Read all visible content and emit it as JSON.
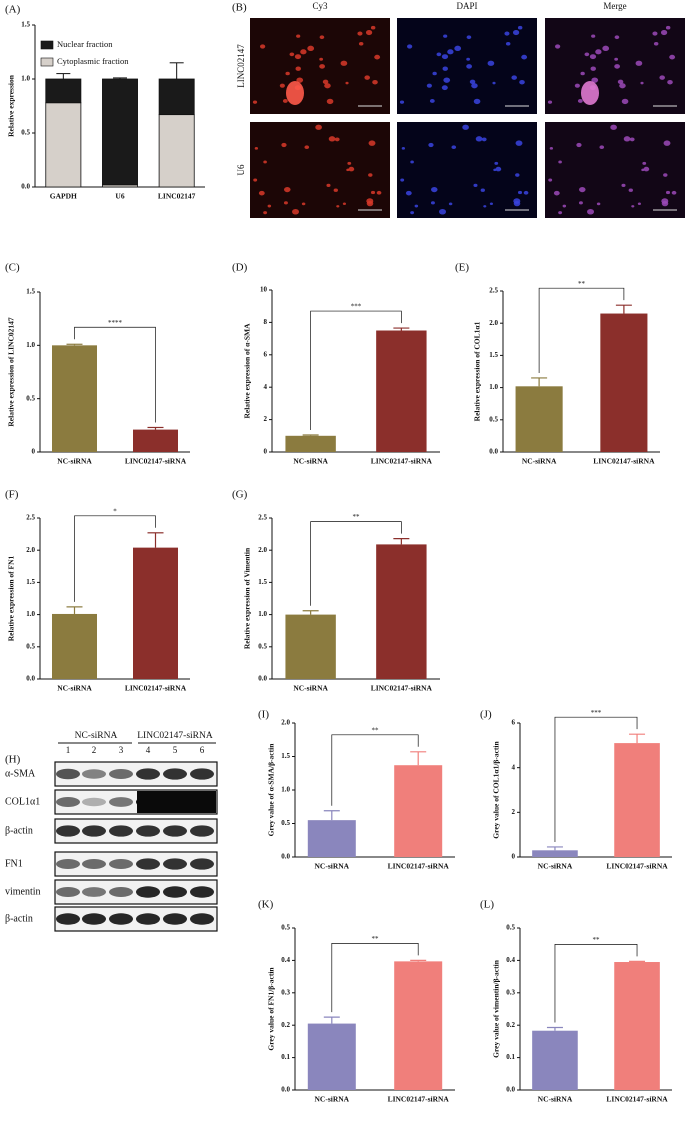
{
  "chart_data": [
    {
      "type": "stacked_bar",
      "panel": "(A)",
      "y_label": "Relative expression",
      "categories": [
        "GAPDH",
        "U6",
        "LINC02147"
      ],
      "series": [
        {
          "name": "Nuclear fraction",
          "color": "#1a1a1a",
          "values": [
            0.22,
            0.98,
            0.33
          ],
          "errors": [
            0.05,
            0.01,
            0.15
          ]
        },
        {
          "name": "Cytoplasmic fraction",
          "color": "#d6d0ca",
          "values": [
            0.78,
            0.02,
            0.67
          ]
        }
      ],
      "ylim": [
        0,
        1.5
      ],
      "yticks": [
        {
          "value": 0,
          "label": "0.0"
        },
        0.5,
        {
          "value": 1,
          "label": "1.0"
        },
        1.5
      ],
      "legend": "upper left"
    },
    {
      "type": "bar",
      "panel": "(C)",
      "y_label": "Relative expression of LINC02147",
      "categories": [
        "NC-siRNA",
        "LINC02147-siRNA"
      ],
      "values": [
        1.0,
        0.21
      ],
      "errors": [
        0.01,
        0.02
      ],
      "colors": [
        "#8b7b3f",
        "#8b2f2b"
      ],
      "ylim": [
        0,
        1.5
      ],
      "yticks": [
        0,
        0.5,
        {
          "value": 1,
          "label": "1.0"
        },
        1.5
      ],
      "annotation": "****"
    },
    {
      "type": "bar",
      "panel": "(D)",
      "y_label": "Relative expression of α-SMA",
      "categories": [
        "NC-siRNA",
        "LINC02147-siRNA"
      ],
      "values": [
        1.0,
        7.5
      ],
      "errors": [
        0.05,
        0.15
      ],
      "colors": [
        "#8b7b3f",
        "#8b2f2b"
      ],
      "ylim": [
        0,
        10
      ],
      "yticks": [
        0,
        2,
        4,
        6,
        8,
        10
      ],
      "annotation": "***"
    },
    {
      "type": "bar",
      "panel": "(E)",
      "y_label": "Relative expression of COL1α1",
      "categories": [
        "NC-siRNA",
        "LINC02147-siRNA"
      ],
      "values": [
        1.02,
        2.15
      ],
      "errors": [
        0.13,
        0.13
      ],
      "colors": [
        "#8b7b3f",
        "#8b2f2b"
      ],
      "ylim": [
        0,
        2.5
      ],
      "yticks": [
        {
          "value": 0,
          "label": "0.0"
        },
        0.5,
        {
          "value": 1,
          "label": "1.0"
        },
        1.5,
        {
          "value": 2,
          "label": "2.0"
        },
        2.5
      ],
      "annotation": "**"
    },
    {
      "type": "bar",
      "panel": "(F)",
      "y_label": "Relative expression of FN1",
      "categories": [
        "NC-siRNA",
        "LINC02147-siRNA"
      ],
      "values": [
        1.01,
        2.04
      ],
      "errors": [
        0.11,
        0.23
      ],
      "colors": [
        "#8b7b3f",
        "#8b2f2b"
      ],
      "ylim": [
        0,
        2.5
      ],
      "yticks": [
        {
          "value": 0,
          "label": "0.0"
        },
        0.5,
        {
          "value": 1,
          "label": "1.0"
        },
        1.5,
        {
          "value": 2,
          "label": "2.0"
        },
        2.5
      ],
      "annotation": "*"
    },
    {
      "type": "bar",
      "panel": "(G)",
      "y_label": "Relative expression of Vimentin",
      "categories": [
        "NC-siRNA",
        "LINC02147-siRNA"
      ],
      "values": [
        1.0,
        2.09
      ],
      "errors": [
        0.06,
        0.09
      ],
      "colors": [
        "#8b7b3f",
        "#8b2f2b"
      ],
      "ylim": [
        0,
        2.5
      ],
      "yticks": [
        {
          "value": 0,
          "label": "0.0"
        },
        0.5,
        {
          "value": 1,
          "label": "1.0"
        },
        1.5,
        {
          "value": 2,
          "label": "2.0"
        },
        2.5
      ],
      "annotation": "**"
    },
    {
      "type": "bar",
      "panel": "(I)",
      "y_label": "Grey value of α-SMA/β-actin",
      "categories": [
        "NC-siRNA",
        "LINC02147-siRNA"
      ],
      "values": [
        0.55,
        1.37
      ],
      "errors": [
        0.14,
        0.2
      ],
      "colors": [
        "#8a86bd",
        "#f07f7b"
      ],
      "ylim": [
        0,
        2
      ],
      "yticks": [
        {
          "value": 0,
          "label": "0.0"
        },
        0.5,
        {
          "value": 1,
          "label": "1.0"
        },
        1.5,
        {
          "value": 2,
          "label": "2.0"
        }
      ],
      "annotation": "**"
    },
    {
      "type": "bar",
      "panel": "(J)",
      "y_label": "Grey value of COL1α1/β-actin",
      "categories": [
        "NC-siRNA",
        "LINC02147-siRNA"
      ],
      "values": [
        0.3,
        5.1
      ],
      "errors": [
        0.15,
        0.4
      ],
      "colors": [
        "#8a86bd",
        "#f07f7b"
      ],
      "ylim": [
        0,
        6
      ],
      "yticks": [
        0,
        2,
        4,
        6
      ],
      "annotation": "***"
    },
    {
      "type": "bar",
      "panel": "(K)",
      "y_label": "Grey value of FN1/β-actin",
      "categories": [
        "NC-siRNA",
        "LINC02147-siRNA"
      ],
      "values": [
        0.205,
        0.397
      ],
      "errors": [
        0.02,
        0.003
      ],
      "colors": [
        "#8a86bd",
        "#f07f7b"
      ],
      "ylim": [
        0,
        0.5
      ],
      "yticks": [
        {
          "value": 0,
          "label": "0.0"
        },
        0.1,
        0.2,
        0.3,
        0.4,
        0.5
      ],
      "annotation": "**"
    },
    {
      "type": "bar",
      "panel": "(L)",
      "y_label": "Grey value of vimentin/β-actin",
      "categories": [
        "NC-siRNA",
        "LINC02147-siRNA"
      ],
      "values": [
        0.183,
        0.395
      ],
      "errors": [
        0.01,
        0.002
      ],
      "colors": [
        "#8a86bd",
        "#f07f7b"
      ],
      "ylim": [
        0,
        0.5
      ],
      "yticks": [
        {
          "value": 0,
          "label": "0.0"
        },
        0.1,
        0.2,
        0.3,
        0.4,
        0.5
      ],
      "annotation": "**"
    }
  ],
  "microscopy": {
    "panel": "(B)",
    "columns": [
      "Cy3",
      "DAPI",
      "Merge"
    ],
    "rows": [
      "LINC02147",
      "U6"
    ]
  },
  "western_blot": {
    "panel": "(H)",
    "groups": [
      "NC-siRNA",
      "LINC02147-siRNA"
    ],
    "lanes": [
      "1",
      "2",
      "3",
      "4",
      "5",
      "6"
    ],
    "bands": [
      "α-SMA",
      "COL1α1",
      "β-actin",
      "FN1",
      "vimentin",
      "β-actin"
    ]
  }
}
